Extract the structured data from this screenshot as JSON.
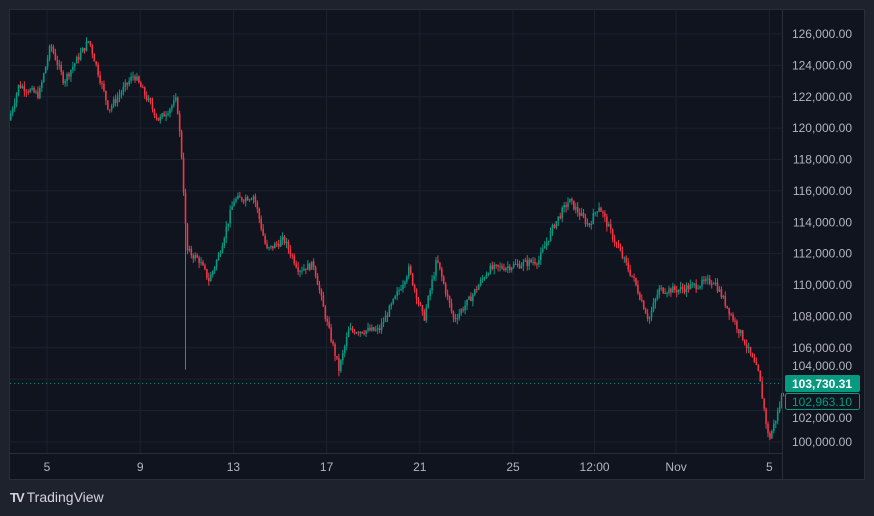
{
  "chart_data": {
    "type": "candlestick",
    "title": "",
    "x_tick_labels": [
      {
        "day": 5,
        "label": "5"
      },
      {
        "day": 9,
        "label": "9"
      },
      {
        "day": 13,
        "label": "13"
      },
      {
        "day": 17,
        "label": "17"
      },
      {
        "day": 21,
        "label": "21"
      },
      {
        "day": 25,
        "label": "25"
      },
      {
        "day": 28.5,
        "label": "12:00"
      },
      {
        "day": 32,
        "label": "Nov"
      },
      {
        "day": 36,
        "label": "5"
      }
    ],
    "y_tick_labels": [
      "126,000.00",
      "124,000.00",
      "122,000.00",
      "120,000.00",
      "118,000.00",
      "116,000.00",
      "114,000.00",
      "112,000.00",
      "110,000.00",
      "108,000.00",
      "106,000.00",
      "104,000.00",
      "102,000.00",
      "100,000.00"
    ],
    "y_ticks": [
      126000,
      124000,
      122000,
      120000,
      118000,
      116000,
      114000,
      112000,
      110000,
      108000,
      106000,
      104000,
      102000,
      100000
    ],
    "xlim": [
      3.4,
      36.6
    ],
    "ylim": [
      99300,
      127500
    ],
    "price_path": [
      [
        3.41,
        120500
      ],
      [
        3.84,
        122750
      ],
      [
        4.7,
        122100
      ],
      [
        5.21,
        125300
      ],
      [
        5.77,
        123000
      ],
      [
        6.85,
        125600
      ],
      [
        7.7,
        121200
      ],
      [
        8.78,
        123400
      ],
      [
        9.85,
        120500
      ],
      [
        10.62,
        121800
      ],
      [
        10.84,
        118000
      ],
      [
        11.05,
        112200
      ],
      [
        11.57,
        111600
      ],
      [
        12.0,
        110300
      ],
      [
        12.42,
        111900
      ],
      [
        13.07,
        115400
      ],
      [
        13.93,
        115700
      ],
      [
        14.48,
        112200
      ],
      [
        15.21,
        112900
      ],
      [
        15.86,
        111000
      ],
      [
        16.5,
        111300
      ],
      [
        16.93,
        108400
      ],
      [
        17.58,
        104600
      ],
      [
        18.0,
        107100
      ],
      [
        19.29,
        107100
      ],
      [
        19.94,
        109000
      ],
      [
        20.58,
        111000
      ],
      [
        21.22,
        107800
      ],
      [
        21.78,
        111600
      ],
      [
        22.51,
        107800
      ],
      [
        23.15,
        109000
      ],
      [
        24.01,
        111000
      ],
      [
        25.3,
        111300
      ],
      [
        26.16,
        111600
      ],
      [
        26.8,
        113800
      ],
      [
        27.45,
        115400
      ],
      [
        28.3,
        113800
      ],
      [
        28.73,
        115100
      ],
      [
        29.38,
        112900
      ],
      [
        30.24,
        110300
      ],
      [
        30.88,
        107800
      ],
      [
        31.31,
        109700
      ],
      [
        32.17,
        109700
      ],
      [
        33.67,
        110300
      ],
      [
        34.31,
        108400
      ],
      [
        34.96,
        106500
      ],
      [
        35.6,
        104300
      ],
      [
        36.03,
        100100
      ],
      [
        36.46,
        102100
      ],
      [
        36.59,
        102963
      ]
    ],
    "spike_low": {
      "day": 10.9,
      "price": 104600
    },
    "last_price": 103730.31,
    "last_price_label": "103,730.31",
    "close_price_label": "102,963.10",
    "up_color": "#089981",
    "down_color": "#f23645"
  },
  "brand": {
    "name": "TradingView"
  }
}
